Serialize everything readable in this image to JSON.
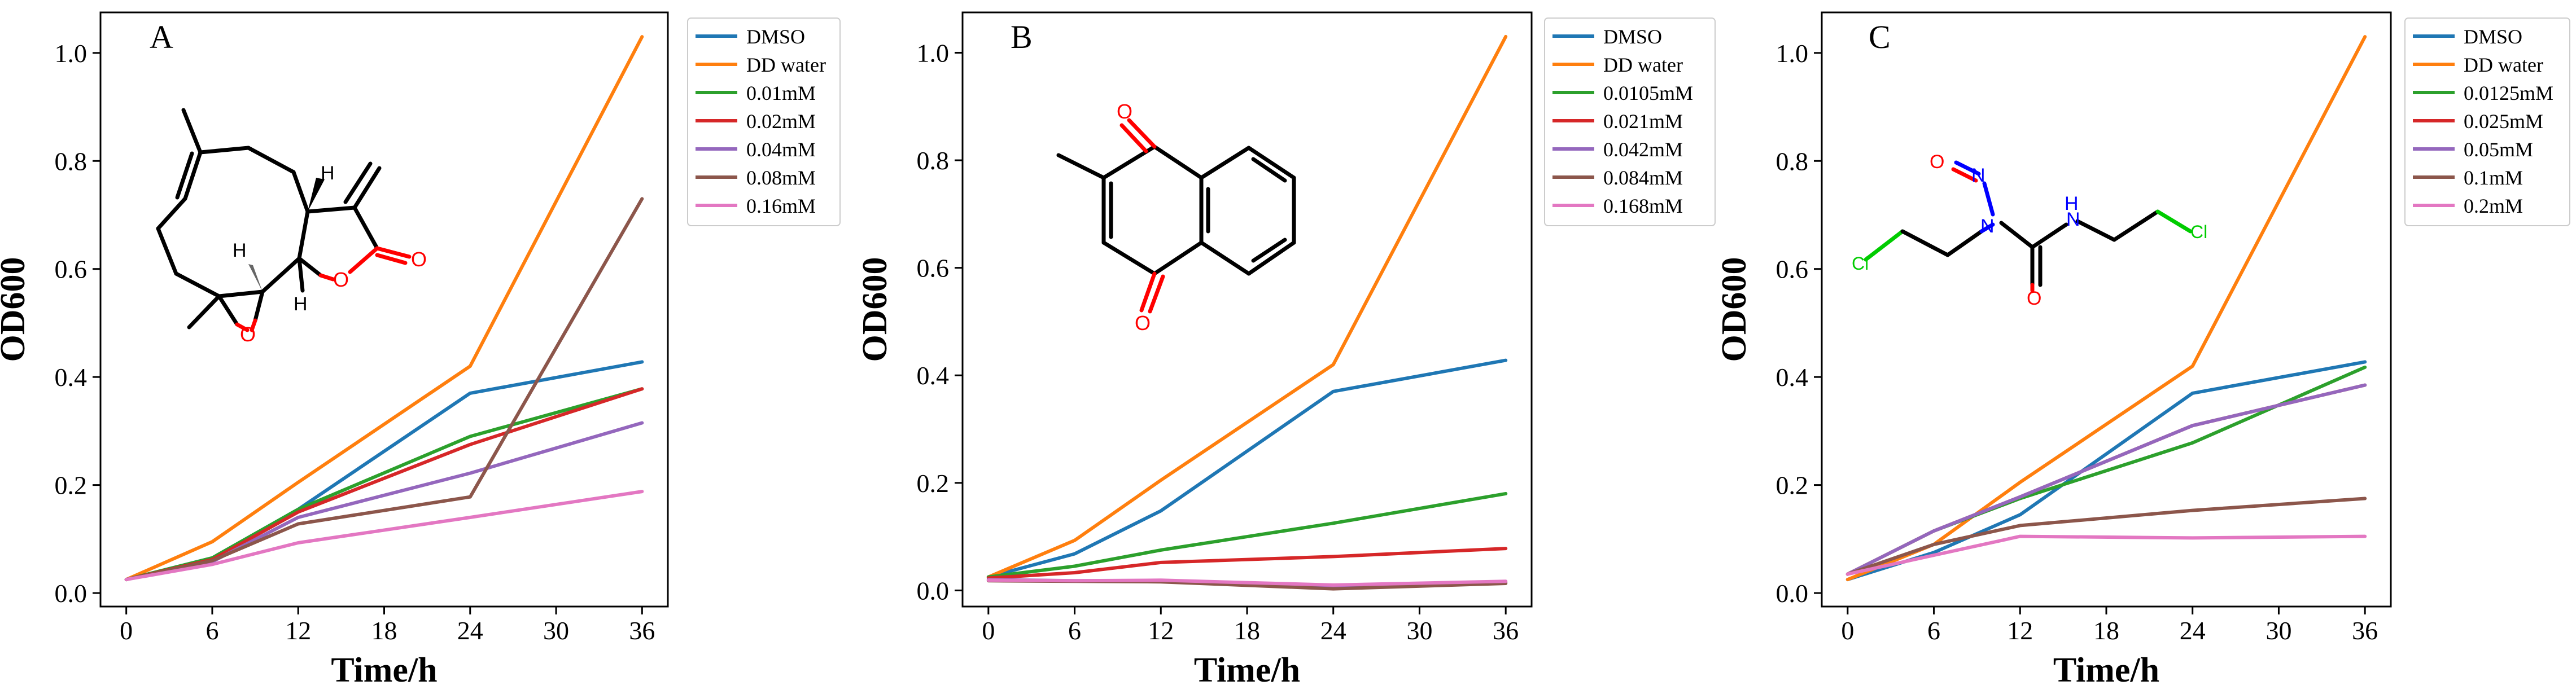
{
  "colors": {
    "blue": "#1f77b4",
    "orange": "#ff7f0e",
    "green": "#2ca02c",
    "red": "#d62728",
    "purple": "#9467bd",
    "brown": "#8c564b",
    "pink": "#e377c2",
    "oxygen": "#ff0000",
    "nitrogen": "#0000ff",
    "chlorine": "#00cc00"
  },
  "chart_data": [
    {
      "type": "line",
      "panel": "A",
      "xlabel": "Time/h",
      "ylabel": "OD600",
      "x": [
        0,
        6,
        12,
        24,
        36
      ],
      "xticks": [
        "0",
        "6",
        "12",
        "18",
        "24",
        "30",
        "36"
      ],
      "yticks": [
        "0.0",
        "0.2",
        "0.4",
        "0.6",
        "0.8",
        "1.0"
      ],
      "xlim": [
        -1.8,
        37.8
      ],
      "ylim": [
        -0.025,
        1.075
      ],
      "legend_position": "top-right",
      "grid": false,
      "structure_icon": "parthenolide-structure",
      "structure_atoms": [
        "H",
        "H",
        "H",
        "O",
        "O",
        "O"
      ],
      "series": [
        {
          "name": "DMSO",
          "color": "#1f77b4",
          "values": [
            0.025,
            0.065,
            0.155,
            0.37,
            0.428
          ]
        },
        {
          "name": "DD water",
          "color": "#ff7f0e",
          "values": [
            0.025,
            0.095,
            0.205,
            0.42,
            1.03
          ]
        },
        {
          "name": "0.01mM",
          "color": "#2ca02c",
          "values": [
            0.025,
            0.065,
            0.155,
            0.29,
            0.378
          ]
        },
        {
          "name": "0.02mM",
          "color": "#d62728",
          "values": [
            0.025,
            0.062,
            0.15,
            0.275,
            0.378
          ]
        },
        {
          "name": "0.04mM",
          "color": "#9467bd",
          "values": [
            0.025,
            0.058,
            0.14,
            0.222,
            0.315
          ]
        },
        {
          "name": "0.08mM",
          "color": "#8c564b",
          "values": [
            0.025,
            0.06,
            0.128,
            0.178,
            0.73
          ]
        },
        {
          "name": "0.16mM",
          "color": "#e377c2",
          "values": [
            0.025,
            0.053,
            0.093,
            0.14,
            0.188
          ]
        }
      ]
    },
    {
      "type": "line",
      "panel": "B",
      "xlabel": "Time/h",
      "ylabel": "OD600",
      "x": [
        0,
        6,
        12,
        24,
        36
      ],
      "xticks": [
        "0",
        "6",
        "12",
        "18",
        "24",
        "30",
        "36"
      ],
      "yticks": [
        "0.0",
        "0.2",
        "0.4",
        "0.6",
        "0.8",
        "1.0"
      ],
      "xlim": [
        -1.8,
        37.8
      ],
      "ylim": [
        -0.03,
        1.075
      ],
      "legend_position": "top-right",
      "grid": false,
      "structure_icon": "menadione-structure",
      "structure_atoms": [
        "O",
        "O"
      ],
      "series": [
        {
          "name": "DMSO",
          "color": "#1f77b4",
          "values": [
            0.025,
            0.068,
            0.148,
            0.37,
            0.428
          ]
        },
        {
          "name": "DD water",
          "color": "#ff7f0e",
          "values": [
            0.025,
            0.093,
            0.205,
            0.42,
            1.03
          ]
        },
        {
          "name": "0.0105mM",
          "color": "#2ca02c",
          "values": [
            0.025,
            0.045,
            0.075,
            0.125,
            0.18
          ]
        },
        {
          "name": "0.021mM",
          "color": "#d62728",
          "values": [
            0.023,
            0.033,
            0.052,
            0.063,
            0.078
          ]
        },
        {
          "name": "0.042mM",
          "color": "#9467bd",
          "values": [
            0.02,
            0.018,
            0.018,
            0.008,
            0.015
          ]
        },
        {
          "name": "0.084mM",
          "color": "#8c564b",
          "values": [
            0.018,
            0.017,
            0.016,
            0.003,
            0.013
          ]
        },
        {
          "name": "0.168mM",
          "color": "#e377c2",
          "values": [
            0.019,
            0.018,
            0.019,
            0.01,
            0.017
          ]
        }
      ]
    },
    {
      "type": "line",
      "panel": "C",
      "xlabel": "Time/h",
      "ylabel": "OD600",
      "x": [
        0,
        6,
        12,
        24,
        36
      ],
      "xticks": [
        "0",
        "6",
        "12",
        "18",
        "24",
        "30",
        "36"
      ],
      "yticks": [
        "0.0",
        "0.2",
        "0.4",
        "0.6",
        "0.8",
        "1.0"
      ],
      "xlim": [
        -1.8,
        37.8
      ],
      "ylim": [
        -0.025,
        1.075
      ],
      "legend_position": "top-right",
      "grid": false,
      "structure_icon": "carmustine-structure",
      "structure_atoms": [
        "O",
        "N",
        "N",
        "H",
        "N",
        "O",
        "Cl",
        "Cl"
      ],
      "series": [
        {
          "name": "DMSO",
          "color": "#1f77b4",
          "values": [
            0.025,
            0.075,
            0.145,
            0.37,
            0.428
          ]
        },
        {
          "name": "DD water",
          "color": "#ff7f0e",
          "values": [
            0.025,
            0.09,
            0.205,
            0.42,
            1.03
          ]
        },
        {
          "name": "0.0125mM",
          "color": "#2ca02c",
          "values": [
            0.035,
            0.115,
            0.175,
            0.278,
            0.418
          ]
        },
        {
          "name": "0.025mM",
          "color": "#d62728",
          "values": [
            0.035,
            0.115,
            0.178,
            0.31,
            0.385
          ]
        },
        {
          "name": "0.05mM",
          "color": "#9467bd",
          "values": [
            0.035,
            0.115,
            0.178,
            0.31,
            0.385
          ]
        },
        {
          "name": "0.1mM",
          "color": "#8c564b",
          "values": [
            0.035,
            0.09,
            0.125,
            0.153,
            0.175
          ]
        },
        {
          "name": "0.2mM",
          "color": "#e377c2",
          "values": [
            0.035,
            0.07,
            0.105,
            0.102,
            0.105
          ]
        }
      ]
    }
  ]
}
